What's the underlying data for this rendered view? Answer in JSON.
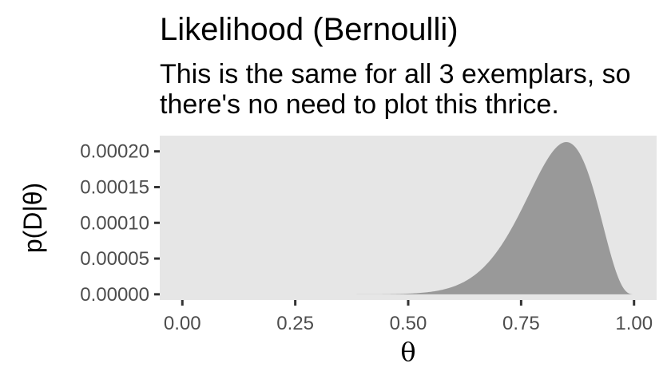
{
  "chart_data": {
    "type": "area",
    "title": "Likelihood (Bernoulli)",
    "subtitle_lines": [
      "This is the same for all 3 exemplars, so",
      "there's no need to plot this thrice."
    ],
    "xlabel": "θ",
    "ylabel": "p(D|θ)",
    "xlim": [
      -0.05,
      1.05
    ],
    "ylim": [
      -8e-06,
      0.000222
    ],
    "x_ticks": [
      0,
      0.25,
      0.5,
      0.75,
      1
    ],
    "x_tick_labels": [
      "0.00",
      "0.25",
      "0.50",
      "0.75",
      "1.00"
    ],
    "y_ticks": [
      0,
      5e-05,
      0.0001,
      0.00015,
      0.0002
    ],
    "y_tick_labels": [
      "0.00000",
      "0.00005",
      "0.00010",
      "0.00015",
      "0.00020"
    ],
    "curve": {
      "form": "theta^k * (1 - theta)^(n - k)",
      "k": 17,
      "n": 20
    },
    "grid": false,
    "panel_background": "#e6e6e6",
    "fill_color": "#999999",
    "tick_color": "#333333"
  }
}
